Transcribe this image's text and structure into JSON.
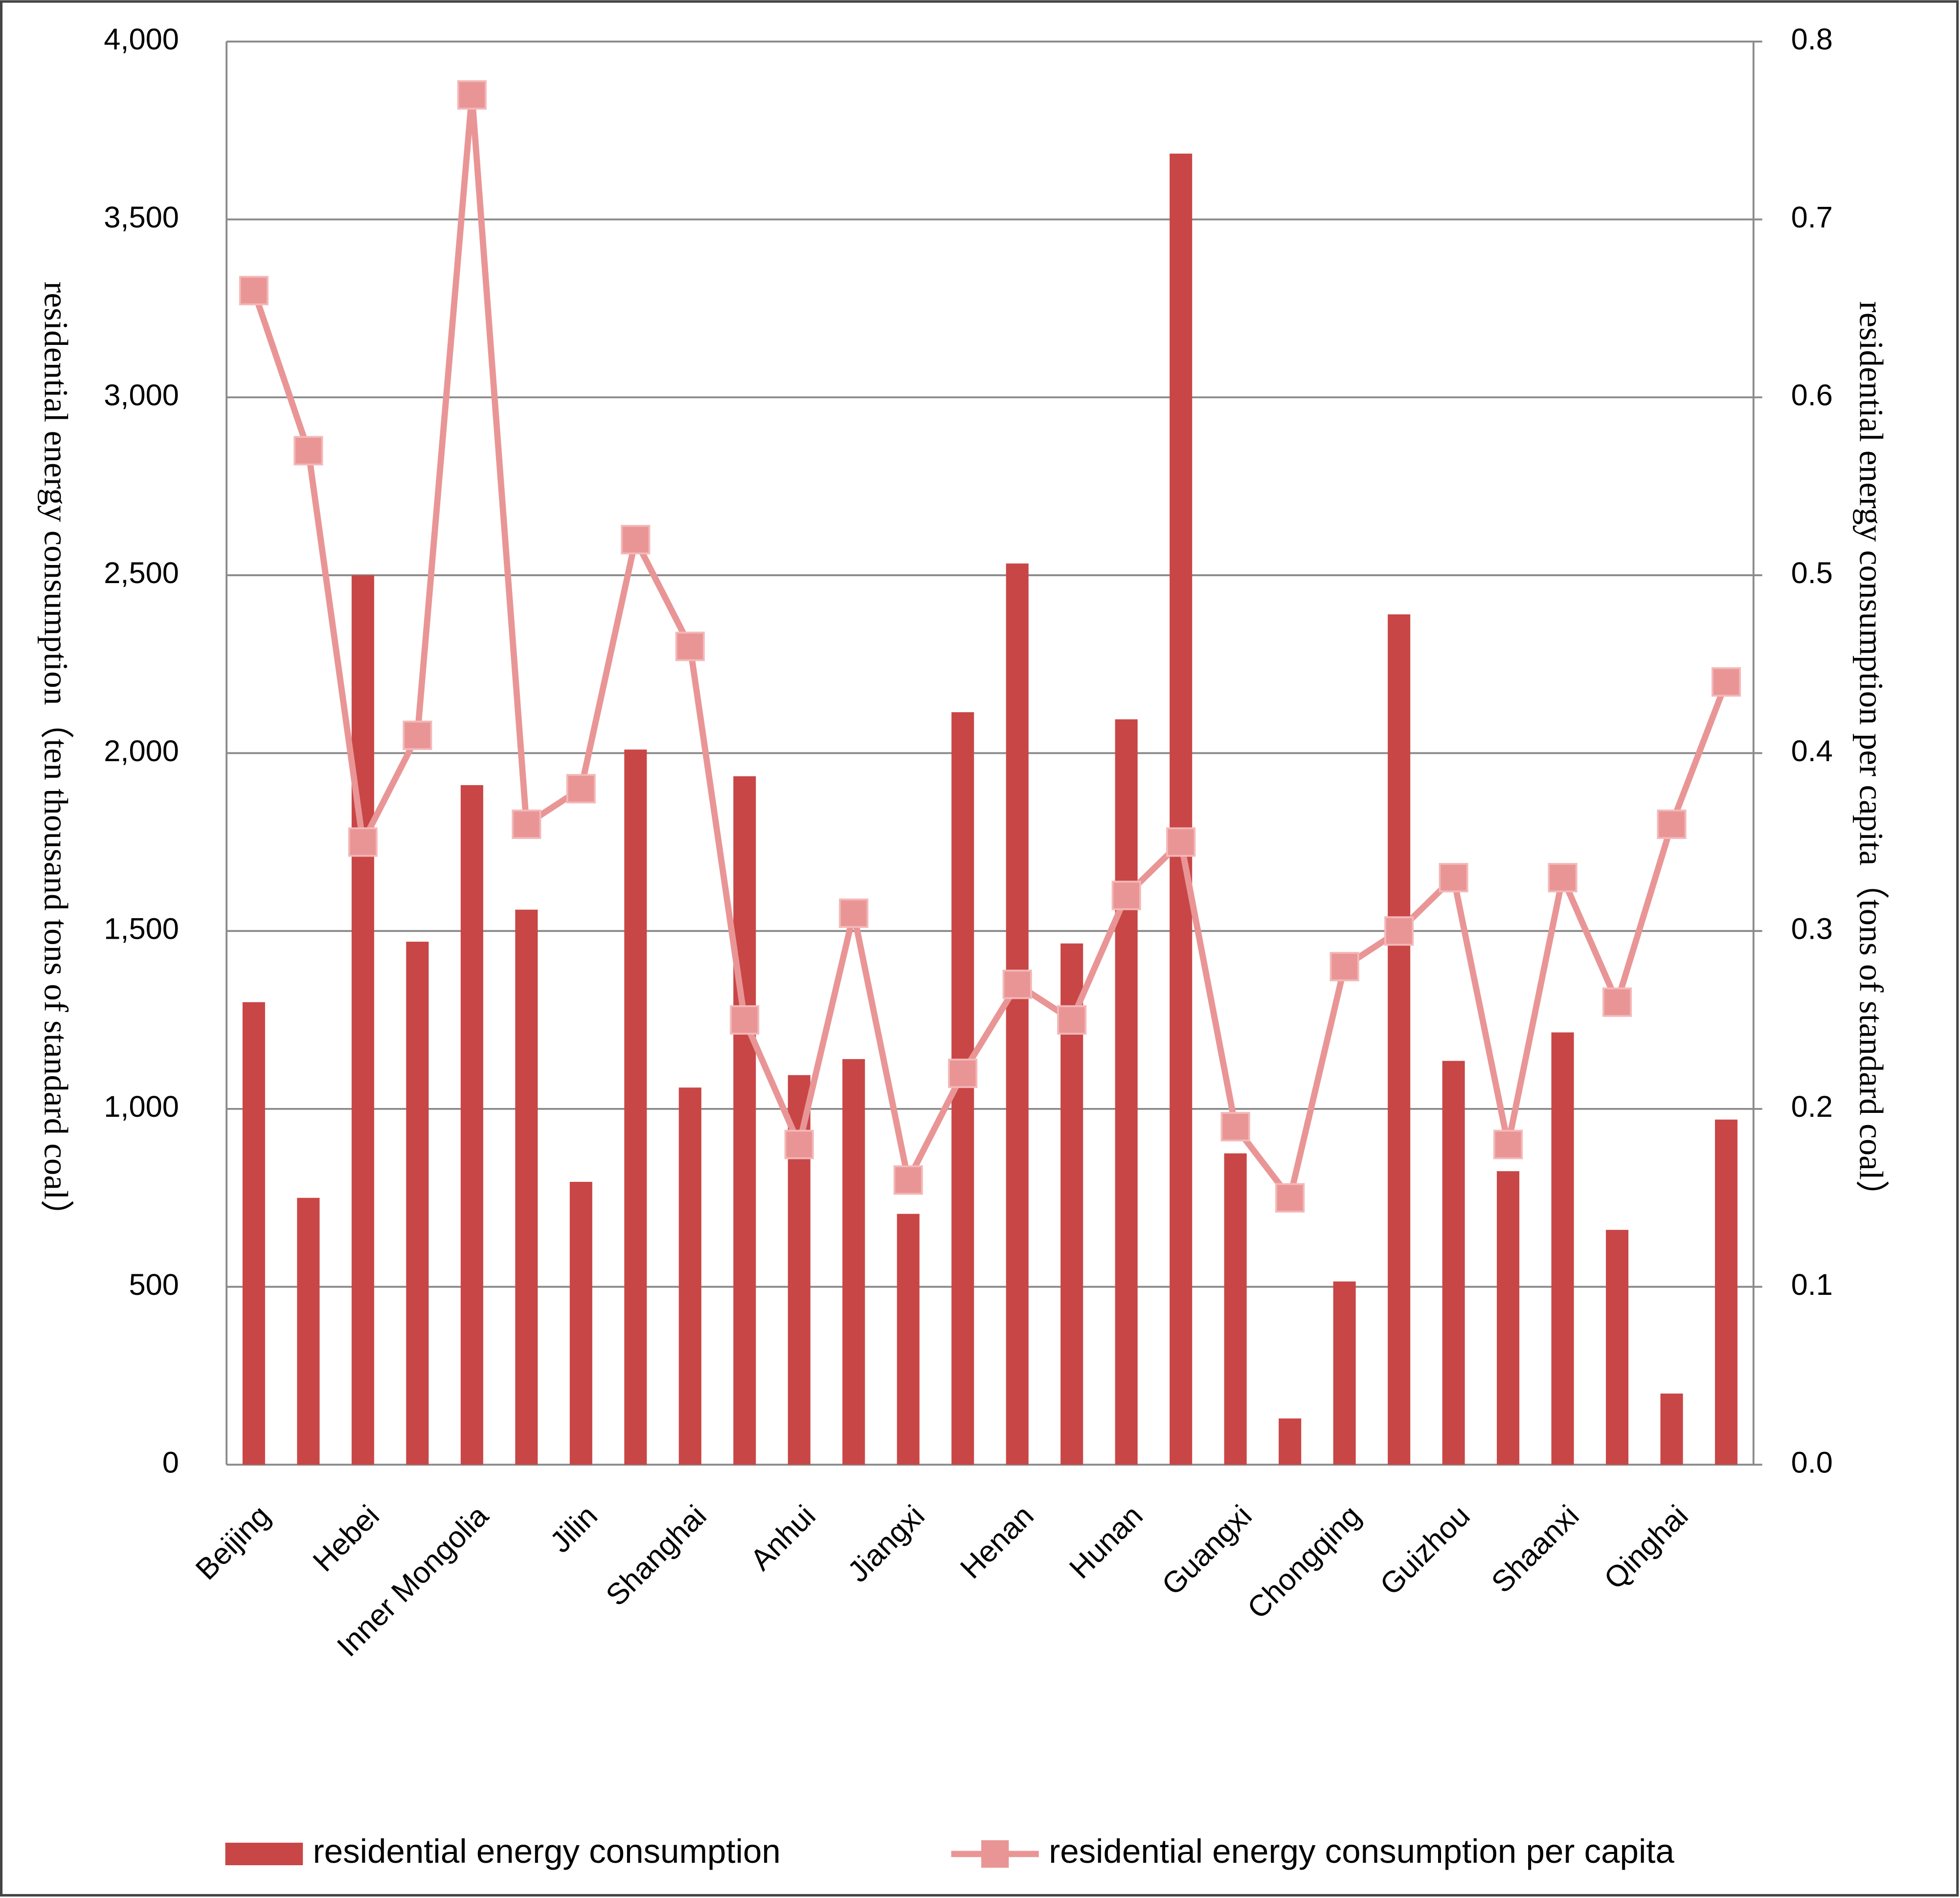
{
  "chart_data": {
    "type": "bar",
    "categories": [
      "Beijing",
      null,
      "Hebei",
      null,
      "Inner Mongolia",
      null,
      "Jilin",
      null,
      "Shanghai",
      null,
      "Anhui",
      null,
      "Jiangxi",
      null,
      "Henan",
      null,
      "Hunan",
      null,
      "Guangxi",
      null,
      "Chongqing",
      null,
      "Guizhou",
      null,
      "Shaanxi",
      null,
      "Qinghai",
      null
    ],
    "series": [
      {
        "name": "residential energy consumption",
        "color": "#c94646",
        "type": "bar",
        "values": [
          1300,
          750,
          2500,
          1470,
          1910,
          1560,
          795,
          2010,
          1060,
          1935,
          1095,
          1140,
          705,
          2115,
          2533,
          1465,
          2095,
          3685,
          875,
          130,
          515,
          2390,
          1135,
          825,
          1215,
          660,
          200,
          970
        ]
      },
      {
        "name": "residential energy consumption per capita",
        "color": "#e99596",
        "type": "line",
        "axis": "y2",
        "values": [
          0.66,
          0.57,
          0.35,
          0.41,
          0.77,
          0.36,
          0.38,
          0.52,
          0.46,
          0.25,
          0.18,
          0.31,
          0.16,
          0.22,
          0.27,
          0.25,
          0.32,
          0.35,
          0.19,
          0.15,
          0.28,
          0.3,
          0.33,
          0.18,
          0.33,
          0.26,
          0.36,
          0.44
        ]
      }
    ],
    "ylabel": "residential energy consumption（ten thousand  tons of standard coal）",
    "y2label": "residential energy consumption per capita（tons  of standard coal）",
    "ylim": [
      0,
      4000
    ],
    "yticks": [
      0,
      500,
      {
        "value": 1000,
        "label": "1,000"
      },
      {
        "value": 1500,
        "label": "1,500"
      },
      {
        "value": 2000,
        "label": "2,000"
      },
      {
        "value": 2500,
        "label": "2,500"
      },
      {
        "value": 3000,
        "label": "3,000"
      },
      {
        "value": 3500,
        "label": "3,500"
      },
      {
        "value": 4000,
        "label": "4,000"
      }
    ],
    "y2lim": [
      0,
      0.8
    ],
    "y2ticks": [
      {
        "value": 0,
        "label": "0.0"
      },
      0.1,
      0.2,
      0.3,
      0.4,
      0.5,
      0.6,
      0.7,
      0.8
    ],
    "grid": true,
    "legend": "bottom"
  }
}
